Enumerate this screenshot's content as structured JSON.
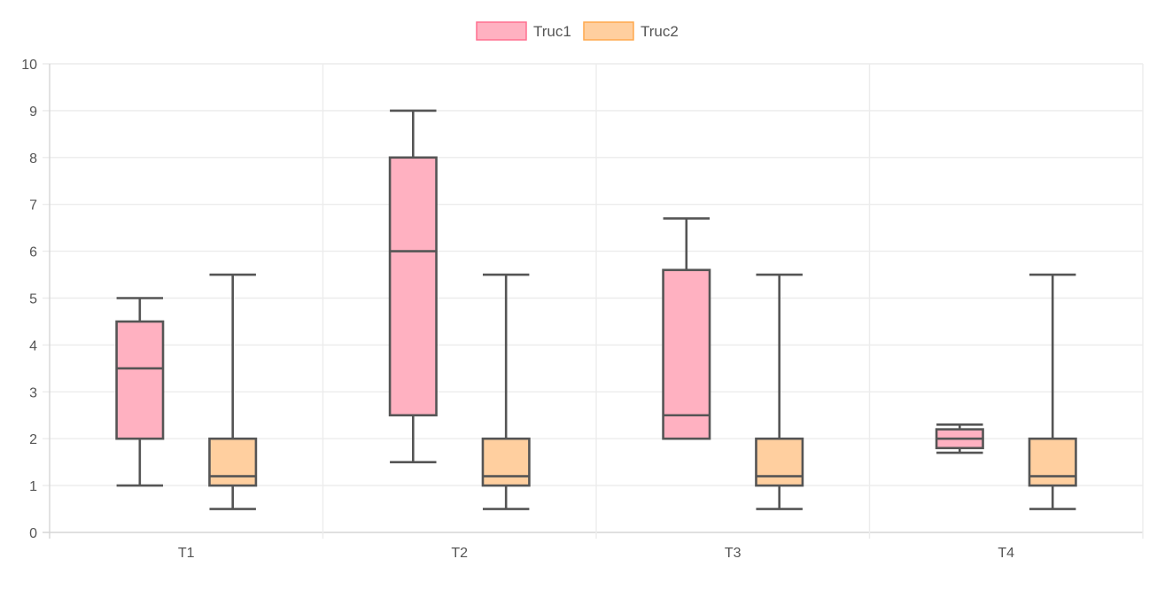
{
  "chart_data": {
    "type": "boxplot",
    "categories": [
      "T1",
      "T2",
      "T3",
      "T4"
    ],
    "ylim": [
      0,
      10
    ],
    "y_ticks": [
      "0",
      "1",
      "2",
      "3",
      "4",
      "5",
      "6",
      "7",
      "8",
      "9",
      "10"
    ],
    "grid": true,
    "legend_position": "top-center",
    "series": [
      {
        "name": "Truc1",
        "color": "#ffb1c1",
        "border": "#555555",
        "values": [
          {
            "min": 1,
            "q1": 2,
            "median": 3.5,
            "q3": 4.5,
            "max": 5
          },
          {
            "min": 1.5,
            "q1": 2.5,
            "median": 6,
            "q3": 8,
            "max": 9
          },
          {
            "min": 2,
            "q1": 2,
            "median": 2.5,
            "q3": 5.6,
            "max": 6.7
          },
          {
            "min": 1.7,
            "q1": 1.8,
            "median": 2,
            "q3": 2.2,
            "max": 2.3
          }
        ]
      },
      {
        "name": "Truc2",
        "color": "#ffcf9f",
        "border": "#555555",
        "values": [
          {
            "min": 0.5,
            "q1": 1,
            "median": 1.2,
            "q3": 2,
            "max": 5.5
          },
          {
            "min": 0.5,
            "q1": 1,
            "median": 1.2,
            "q3": 2,
            "max": 5.5
          },
          {
            "min": 0.5,
            "q1": 1,
            "median": 1.2,
            "q3": 2,
            "max": 5.5
          },
          {
            "min": 0.5,
            "q1": 1,
            "median": 1.2,
            "q3": 2,
            "max": 5.5
          }
        ]
      }
    ]
  }
}
